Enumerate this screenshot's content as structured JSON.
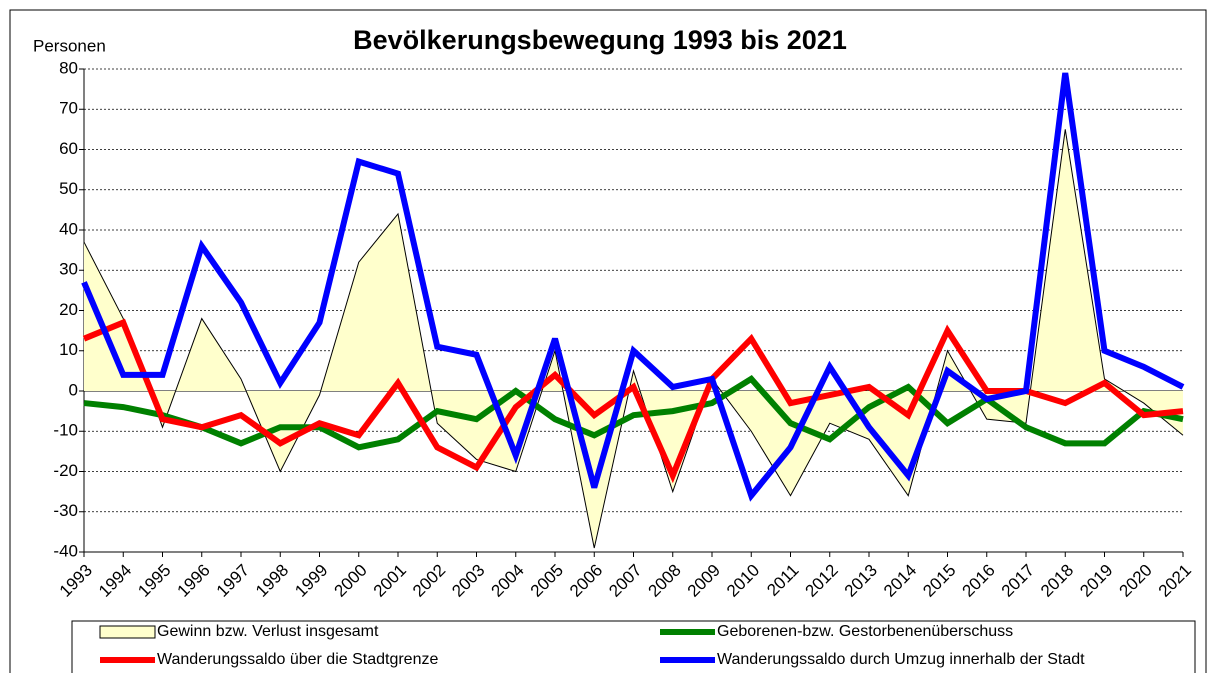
{
  "chart_data": {
    "type": "line",
    "title": "Bevölkerungsbewegung 1993 bis 2021",
    "y_label": "Personen",
    "categories": [
      "1993",
      "1994",
      "1995",
      "1996",
      "1997",
      "1998",
      "1999",
      "2000",
      "2001",
      "2002",
      "2003",
      "2004",
      "2005",
      "2006",
      "2007",
      "2008",
      "2009",
      "2010",
      "2011",
      "2012",
      "2013",
      "2014",
      "2015",
      "2016",
      "2017",
      "2018",
      "2019",
      "2020",
      "2021"
    ],
    "series": [
      {
        "name": "Gewinn bzw. Verlust insgesamt",
        "type": "area",
        "color": "#ffffcc",
        "values": [
          37,
          18,
          -9,
          18,
          3,
          -20,
          -1,
          32,
          44,
          -8,
          -17,
          -20,
          10,
          -39,
          5,
          -25,
          3,
          -10,
          -26,
          -8,
          -12,
          -26,
          10,
          -7,
          -8,
          65,
          3,
          -3,
          -11
        ]
      },
      {
        "name": "Geborenen-bzw. Gestorbenenüberschuss",
        "type": "line",
        "color": "#008000",
        "values": [
          -3,
          -4,
          -6,
          -9,
          -13,
          -9,
          -9,
          -14,
          -12,
          -5,
          -7,
          0,
          -7,
          -11,
          -6,
          -5,
          -3,
          3,
          -8,
          -12,
          -4,
          1,
          -8,
          -2,
          -9,
          -13,
          -13,
          -5,
          -7
        ]
      },
      {
        "name": "Wanderungssaldo über die Stadtgrenze",
        "type": "line",
        "color": "#ff0000",
        "values": [
          13,
          17,
          -7,
          -9,
          -6,
          -13,
          -8,
          -11,
          2,
          -14,
          -19,
          -4,
          4,
          -6,
          1,
          -21,
          3,
          13,
          -3,
          -1,
          1,
          -6,
          15,
          0,
          0,
          -3,
          2,
          -6,
          -5
        ]
      },
      {
        "name": "Wanderungssaldo durch Umzug innerhalb der Stadt",
        "type": "line",
        "color": "#0000ff",
        "values": [
          27,
          4,
          4,
          36,
          22,
          2,
          17,
          57,
          54,
          11,
          9,
          -16,
          13,
          -24,
          10,
          1,
          3,
          -26,
          -14,
          6,
          -9,
          -21,
          5,
          -2,
          0,
          79,
          10,
          6,
          1
        ]
      }
    ],
    "ylim": [
      -40,
      80
    ],
    "yticks": [
      -40,
      -30,
      -20,
      -10,
      0,
      10,
      20,
      30,
      40,
      50,
      60,
      70,
      80
    ],
    "grid": true,
    "legend": "bottom"
  }
}
